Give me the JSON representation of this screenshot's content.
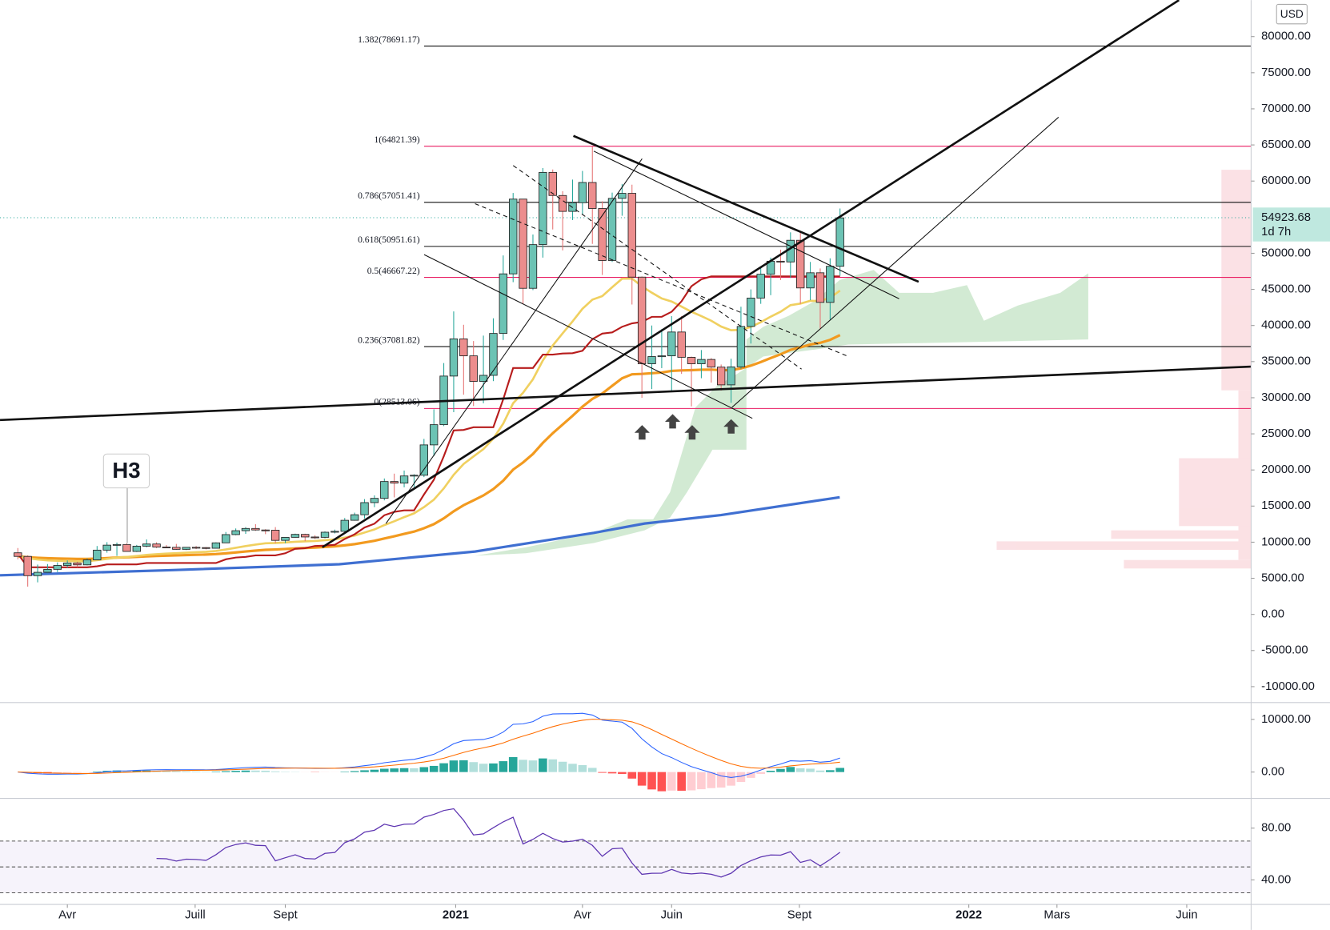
{
  "chart_data": {
    "type": "candlestick",
    "currency": "USD",
    "up_color": "#6cc3b4",
    "down_color": "#ec8d8d",
    "candles": [
      [
        8530,
        9190,
        7630,
        8030
      ],
      [
        8030,
        8180,
        3850,
        5360
      ],
      [
        5360,
        6900,
        4440,
        5830
      ],
      [
        5830,
        6970,
        5690,
        6240
      ],
      [
        6240,
        7200,
        5860,
        6780
      ],
      [
        6780,
        7470,
        6470,
        7120
      ],
      [
        7120,
        7290,
        6560,
        6860
      ],
      [
        6860,
        7750,
        6790,
        7550
      ],
      [
        7550,
        9470,
        7540,
        8900
      ],
      [
        8900,
        10000,
        8550,
        9590
      ],
      [
        9590,
        9950,
        8100,
        9680
      ],
      [
        9680,
        9840,
        8810,
        8720
      ],
      [
        8720,
        9620,
        8640,
        9450
      ],
      [
        9450,
        10380,
        9290,
        9750
      ],
      [
        9750,
        9990,
        9180,
        9330
      ],
      [
        9330,
        9590,
        9230,
        9290
      ],
      [
        9290,
        9760,
        8940,
        9010
      ],
      [
        9010,
        9310,
        8900,
        9290
      ],
      [
        9290,
        9470,
        9040,
        9250
      ],
      [
        9250,
        9330,
        9000,
        9160
      ],
      [
        9160,
        9980,
        9130,
        9910
      ],
      [
        9910,
        11410,
        9890,
        11050
      ],
      [
        11050,
        11900,
        10960,
        11590
      ],
      [
        11590,
        12090,
        11150,
        11900
      ],
      [
        11900,
        12490,
        11570,
        11690
      ],
      [
        11690,
        11800,
        11110,
        11660
      ],
      [
        11660,
        12090,
        9870,
        10250
      ],
      [
        10250,
        10660,
        9880,
        10670
      ],
      [
        10670,
        11180,
        10640,
        11080
      ],
      [
        11080,
        11170,
        10140,
        10720
      ],
      [
        10720,
        10960,
        10440,
        10670
      ],
      [
        10670,
        11490,
        10530,
        11380
      ],
      [
        11380,
        11740,
        11210,
        11500
      ],
      [
        11500,
        13350,
        11410,
        13030
      ],
      [
        13030,
        14090,
        12970,
        13800
      ],
      [
        13800,
        15960,
        13290,
        15480
      ],
      [
        15480,
        16480,
        14850,
        16070
      ],
      [
        16070,
        18820,
        15790,
        18400
      ],
      [
        18400,
        19490,
        16200,
        18180
      ],
      [
        18180,
        19920,
        17600,
        19170
      ],
      [
        19170,
        19410,
        17600,
        19270
      ],
      [
        19270,
        24300,
        19010,
        23470
      ],
      [
        23470,
        28400,
        21900,
        26270
      ],
      [
        26270,
        34800,
        26070,
        33000
      ],
      [
        33000,
        41950,
        28000,
        38150
      ],
      [
        38150,
        40100,
        30420,
        35800
      ],
      [
        35800,
        37850,
        28850,
        32260
      ],
      [
        32260,
        38600,
        29240,
        33100
      ],
      [
        33100,
        41000,
        32300,
        38900
      ],
      [
        38900,
        49700,
        38000,
        47150
      ],
      [
        47150,
        58350,
        46000,
        57500
      ],
      [
        57500,
        57500,
        43000,
        45150
      ],
      [
        45150,
        52600,
        44900,
        51200
      ],
      [
        51200,
        61800,
        49400,
        61200
      ],
      [
        61200,
        61600,
        53300,
        58000
      ],
      [
        58000,
        58600,
        50400,
        55800
      ],
      [
        55800,
        60200,
        54600,
        57000
      ],
      [
        57000,
        61400,
        55400,
        59800
      ],
      [
        59800,
        64800,
        51300,
        56200
      ],
      [
        56200,
        57200,
        47000,
        49000
      ],
      [
        49000,
        58400,
        48800,
        57600
      ],
      [
        57600,
        59600,
        55200,
        58300
      ],
      [
        58300,
        59500,
        42900,
        46700
      ],
      [
        46700,
        46800,
        30000,
        34700
      ],
      [
        34700,
        40000,
        31200,
        35700
      ],
      [
        35700,
        39500,
        34100,
        35800
      ],
      [
        35800,
        41300,
        31000,
        39100
      ],
      [
        39100,
        41300,
        33300,
        35600
      ],
      [
        35600,
        35700,
        28800,
        34700
      ],
      [
        34700,
        36600,
        32700,
        35300
      ],
      [
        35300,
        35500,
        32100,
        34240
      ],
      [
        34240,
        34600,
        31000,
        31780
      ],
      [
        31780,
        35400,
        29300,
        34270
      ],
      [
        34270,
        42600,
        34000,
        39870
      ],
      [
        39870,
        45000,
        37500,
        43800
      ],
      [
        43800,
        48100,
        43000,
        47100
      ],
      [
        47100,
        49400,
        44200,
        48900
      ],
      [
        48900,
        50500,
        46300,
        48800
      ],
      [
        48800,
        52900,
        46600,
        51800
      ],
      [
        51800,
        52900,
        43000,
        45200
      ],
      [
        45200,
        48800,
        43500,
        47300
      ],
      [
        47300,
        47900,
        39600,
        43200
      ],
      [
        43200,
        49300,
        40800,
        48200
      ],
      [
        48200,
        56200,
        46900,
        54900
      ]
    ],
    "xlim": [
      -1.8,
      124.5
    ],
    "xticks": [
      {
        "value": 5,
        "label": "Avr"
      },
      {
        "value": 17.9,
        "label": "Juill"
      },
      {
        "value": 27,
        "label": "Sept"
      },
      {
        "value": 44.2,
        "label": "2021"
      },
      {
        "value": 57,
        "label": "Avr"
      },
      {
        "value": 66,
        "label": "Juin"
      },
      {
        "value": 78.9,
        "label": "Sept"
      },
      {
        "value": 96,
        "label": "2022"
      },
      {
        "value": 104.9,
        "label": "Mars"
      },
      {
        "value": 118,
        "label": "Juin"
      }
    ],
    "ylim": [
      -12200,
      85050
    ],
    "yticks": [
      {
        "value": 80000,
        "label": "80000.00"
      },
      {
        "value": 75000,
        "label": "75000.00"
      },
      {
        "value": 70000,
        "label": "70000.00"
      },
      {
        "value": 65000,
        "label": "65000.00"
      },
      {
        "value": 60000,
        "label": "60000.00"
      },
      {
        "value": 50000,
        "label": "50000.00"
      },
      {
        "value": 45000,
        "label": "45000.00"
      },
      {
        "value": 40000,
        "label": "40000.00"
      },
      {
        "value": 35000,
        "label": "35000.00"
      },
      {
        "value": 30000,
        "label": "30000.00"
      },
      {
        "value": 25000,
        "label": "25000.00"
      },
      {
        "value": 20000,
        "label": "20000.00"
      },
      {
        "value": 15000,
        "label": "15000.00"
      },
      {
        "value": 10000,
        "label": "10000.00"
      },
      {
        "value": 5000,
        "label": "5000.00"
      },
      {
        "value": 0,
        "label": "0.00"
      },
      {
        "value": -5000,
        "label": "-5000.00"
      },
      {
        "value": -10000,
        "label": "-10000.00"
      }
    ],
    "last_price": {
      "value": 54923.68,
      "label": "54923.68"
    },
    "countdown": "1d 7h",
    "fib_levels": [
      {
        "value": 78691.17,
        "label": "1.382(78691.17)",
        "color": "#111111"
      },
      {
        "value": 64821.39,
        "label": "1(64821.39)",
        "color": "#e91e63"
      },
      {
        "value": 57051.41,
        "label": "0.786(57051.41)",
        "color": "#111111"
      },
      {
        "value": 50951.61,
        "label": "0.618(50951.61)",
        "color": "#111111"
      },
      {
        "value": 46667.22,
        "label": "0.5(46667.22)",
        "color": "#e91e63"
      },
      {
        "value": 37081.82,
        "label": "0.236(37081.82)",
        "color": "#111111"
      },
      {
        "value": 28513.06,
        "label": "0(28513.06)",
        "color": "#e91e63"
      }
    ],
    "annotation": "H3",
    "macd": {
      "ylim": [
        -5000,
        13200
      ],
      "yticks": [
        {
          "value": 10000,
          "label": "10000.00"
        },
        {
          "value": 0,
          "label": "0.00"
        }
      ]
    },
    "rsi": {
      "ylim": [
        21,
        103
      ],
      "yticks": [
        {
          "value": 80,
          "label": "80.00"
        },
        {
          "value": 40,
          "label": "40.00"
        }
      ],
      "bands": [
        30,
        50,
        70
      ]
    }
  }
}
